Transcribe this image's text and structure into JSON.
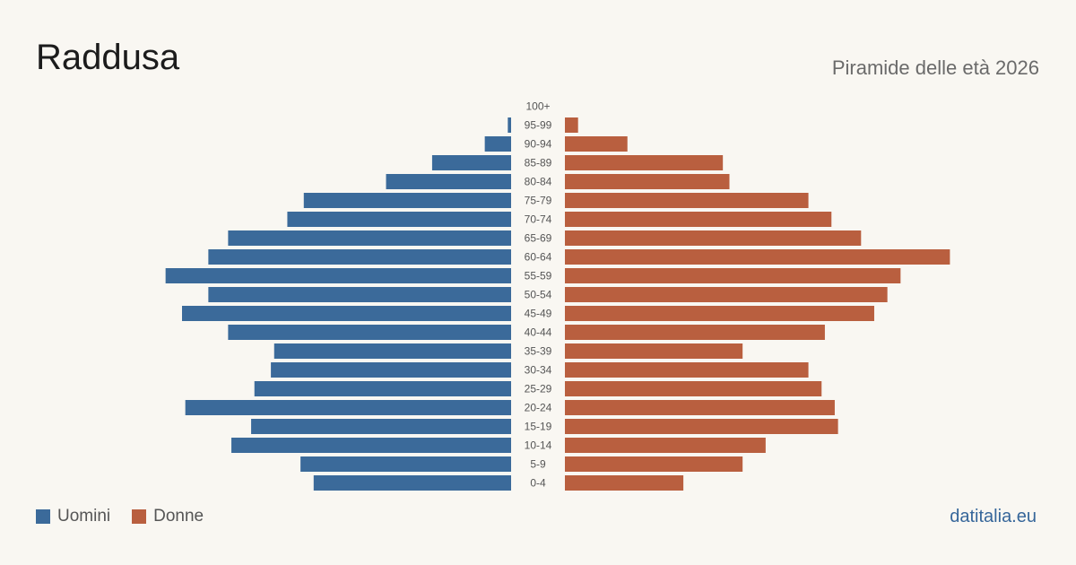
{
  "title": "Raddusa",
  "subtitle": "Piramide delle età 2026",
  "source": "datitalia.eu",
  "colors": {
    "men": "#3b6a9a",
    "women": "#b95f3f"
  },
  "legend": {
    "men": "Uomini",
    "women": "Donne"
  },
  "chart_data": {
    "type": "bar",
    "orientation": "horizontal-pyramid",
    "categories": [
      "100+",
      "95-99",
      "90-94",
      "85-89",
      "80-84",
      "75-79",
      "70-74",
      "65-69",
      "60-64",
      "55-59",
      "50-54",
      "45-49",
      "40-44",
      "35-39",
      "30-34",
      "25-29",
      "20-24",
      "15-19",
      "10-14",
      "5-9",
      "0-4"
    ],
    "series": [
      {
        "name": "Uomini",
        "values": [
          0,
          1,
          8,
          24,
          38,
          63,
          68,
          86,
          92,
          105,
          92,
          100,
          86,
          72,
          73,
          78,
          99,
          79,
          85,
          64,
          60
        ]
      },
      {
        "name": "Donne",
        "values": [
          0,
          4,
          19,
          48,
          50,
          74,
          81,
          90,
          117,
          102,
          98,
          94,
          79,
          54,
          74,
          78,
          82,
          83,
          61,
          54,
          36
        ]
      }
    ],
    "xlabel": "",
    "ylabel": "",
    "grid": false,
    "legend_position": "bottom-left"
  }
}
